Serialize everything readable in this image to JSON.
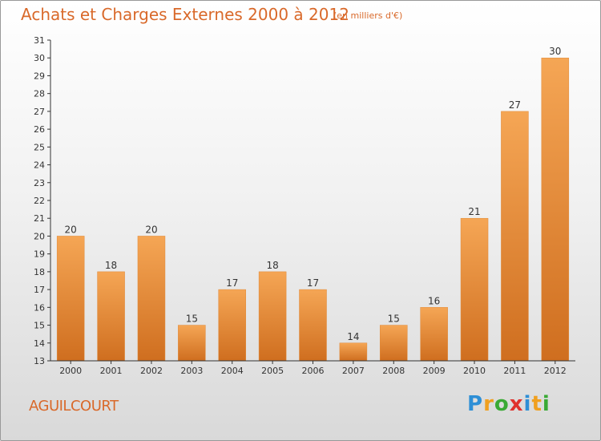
{
  "header": {
    "title": "Achats et Charges Externes 2000 à 2012",
    "unit": "(en milliers d'€)"
  },
  "footer": {
    "commune": "AGUILCOURT",
    "logo": [
      "P",
      "r",
      "o",
      "x",
      "i",
      "t",
      "i"
    ],
    "logo_colors": [
      "#2e8fd6",
      "#f0a020",
      "#3aaa35",
      "#e0322d",
      "#2e8fd6",
      "#f0a020",
      "#3aaa35"
    ]
  },
  "colors": {
    "bar_top": "#f5a655",
    "bar_bottom": "#cf6e1f",
    "title": "#d9692a"
  },
  "chart_data": {
    "type": "bar",
    "categories": [
      "2000",
      "2001",
      "2002",
      "2003",
      "2004",
      "2005",
      "2006",
      "2007",
      "2008",
      "2009",
      "2010",
      "2011",
      "2012"
    ],
    "values": [
      20,
      18,
      20,
      15,
      17,
      18,
      17,
      14,
      15,
      16,
      21,
      27,
      30
    ],
    "ylim": [
      13,
      31
    ],
    "yticks": [
      13,
      14,
      15,
      16,
      17,
      18,
      19,
      20,
      21,
      22,
      23,
      24,
      25,
      26,
      27,
      28,
      29,
      30,
      31
    ],
    "grid": false
  }
}
